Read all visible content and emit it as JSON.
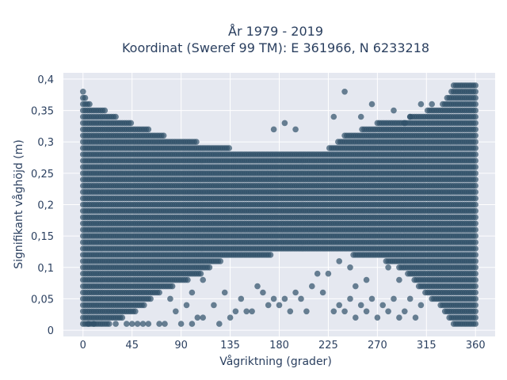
{
  "chart_data": {
    "type": "scatter",
    "title_line1": "År 1979 - 2019",
    "title_line2": "Koordinat (Sweref 99 TM): E 361966, N 6233218",
    "xlabel": "Vågriktning (grader)",
    "ylabel": "Signifikant våghöjd (m)",
    "xlim": [
      -18,
      378
    ],
    "ylim": [
      -0.01,
      0.41
    ],
    "xticks": [
      0,
      45,
      90,
      135,
      180,
      225,
      270,
      315,
      360
    ],
    "xtick_labels": [
      "0",
      "45",
      "90",
      "135",
      "180",
      "225",
      "270",
      "315",
      "360"
    ],
    "yticks": [
      0,
      0.05,
      0.1,
      0.15,
      0.2,
      0.25,
      0.3,
      0.35,
      0.4
    ],
    "ytick_labels": [
      "0",
      "0,05",
      "0,1",
      "0,15",
      "0,2",
      "0,25",
      "0,3",
      "0,35",
      "0,4"
    ],
    "grid": true,
    "marker_color": "#2f5068",
    "plot_bg": "#e5e8f0",
    "y_step": 0.01,
    "x_step": 2,
    "envelope": {
      "directions": [
        0,
        10,
        20,
        30,
        45,
        60,
        75,
        90,
        105,
        120,
        135,
        150,
        165,
        180,
        195,
        210,
        225,
        240,
        255,
        270,
        285,
        300,
        315,
        330,
        340,
        350,
        360
      ],
      "max_height": [
        0.38,
        0.35,
        0.35,
        0.34,
        0.33,
        0.32,
        0.31,
        0.3,
        0.3,
        0.29,
        0.29,
        0.28,
        0.28,
        0.28,
        0.28,
        0.28,
        0.29,
        0.31,
        0.32,
        0.33,
        0.33,
        0.34,
        0.35,
        0.36,
        0.39,
        0.39,
        0.39
      ],
      "min_dense_height": [
        0.01,
        0.01,
        0.01,
        0.02,
        0.03,
        0.05,
        0.07,
        0.08,
        0.09,
        0.11,
        0.12,
        0.12,
        0.12,
        0.13,
        0.13,
        0.13,
        0.13,
        0.13,
        0.12,
        0.12,
        0.11,
        0.09,
        0.06,
        0.04,
        0.01,
        0.01,
        0.01
      ]
    },
    "sparse_points": [
      [
        5,
        0.01
      ],
      [
        10,
        0.01
      ],
      [
        30,
        0.01
      ],
      [
        40,
        0.01
      ],
      [
        45,
        0.01
      ],
      [
        50,
        0.01
      ],
      [
        55,
        0.01
      ],
      [
        60,
        0.01
      ],
      [
        70,
        0.01
      ],
      [
        75,
        0.01
      ],
      [
        90,
        0.01
      ],
      [
        100,
        0.01
      ],
      [
        105,
        0.02
      ],
      [
        110,
        0.02
      ],
      [
        125,
        0.01
      ],
      [
        135,
        0.02
      ],
      [
        140,
        0.03
      ],
      [
        150,
        0.03
      ],
      [
        155,
        0.03
      ],
      [
        165,
        0.06
      ],
      [
        170,
        0.04
      ],
      [
        175,
        0.05
      ],
      [
        180,
        0.04
      ],
      [
        185,
        0.05
      ],
      [
        190,
        0.03
      ],
      [
        200,
        0.05
      ],
      [
        205,
        0.03
      ],
      [
        210,
        0.07
      ],
      [
        230,
        0.03
      ],
      [
        235,
        0.04
      ],
      [
        240,
        0.03
      ],
      [
        245,
        0.05
      ],
      [
        250,
        0.02
      ],
      [
        255,
        0.04
      ],
      [
        260,
        0.03
      ],
      [
        265,
        0.05
      ],
      [
        270,
        0.02
      ],
      [
        275,
        0.04
      ],
      [
        280,
        0.03
      ],
      [
        285,
        0.05
      ],
      [
        290,
        0.02
      ],
      [
        295,
        0.03
      ],
      [
        300,
        0.05
      ],
      [
        305,
        0.02
      ],
      [
        310,
        0.04
      ],
      [
        120,
        0.04
      ],
      [
        130,
        0.06
      ],
      [
        145,
        0.05
      ],
      [
        160,
        0.07
      ],
      [
        195,
        0.06
      ],
      [
        215,
        0.09
      ],
      [
        220,
        0.06
      ],
      [
        225,
        0.09
      ],
      [
        245,
        0.1
      ],
      [
        260,
        0.08
      ],
      [
        280,
        0.1
      ],
      [
        290,
        0.08
      ],
      [
        100,
        0.06
      ],
      [
        110,
        0.08
      ],
      [
        80,
        0.05
      ],
      [
        85,
        0.03
      ],
      [
        95,
        0.04
      ],
      [
        235,
        0.11
      ],
      [
        250,
        0.07
      ],
      [
        240,
        0.38
      ],
      [
        175,
        0.32
      ],
      [
        185,
        0.33
      ],
      [
        195,
        0.32
      ],
      [
        230,
        0.34
      ],
      [
        255,
        0.34
      ],
      [
        265,
        0.36
      ],
      [
        285,
        0.35
      ],
      [
        300,
        0.34
      ],
      [
        310,
        0.36
      ],
      [
        320,
        0.36
      ],
      [
        295,
        0.33
      ]
    ]
  }
}
